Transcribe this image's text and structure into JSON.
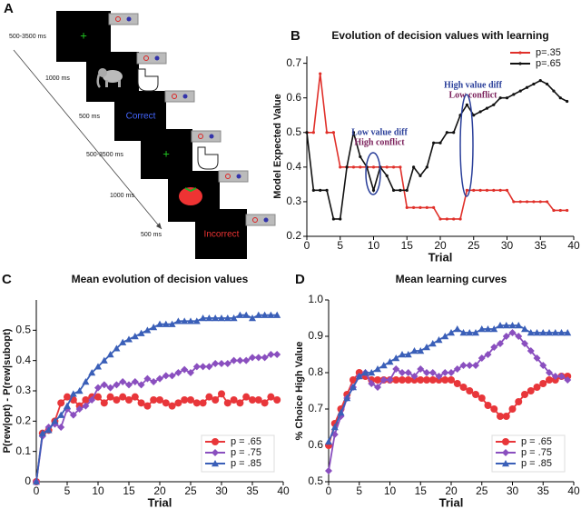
{
  "diagram": {
    "label": "A",
    "steps": [
      {
        "time": "500-3500 ms"
      },
      {
        "time": "1000 ms"
      },
      {
        "time": "500 ms",
        "feedback": "Correct"
      },
      {
        "time": "500-3500 ms"
      },
      {
        "time": "1000 ms"
      },
      {
        "time": "500 ms",
        "feedback": "Incorrect"
      }
    ]
  },
  "chart_data": [
    {
      "type": "line",
      "label": "B",
      "title": "Evolution of decision values with learning",
      "xlabel": "Trial",
      "ylabel": "Model Expected Value",
      "legend": "upper right",
      "x": [
        0,
        1,
        2,
        3,
        4,
        5,
        6,
        7,
        8,
        9,
        10,
        11,
        12,
        13,
        14,
        15,
        16,
        17,
        18,
        19,
        20,
        21,
        22,
        23,
        24,
        25,
        26,
        27,
        28,
        29,
        30,
        31,
        32,
        33,
        34,
        35,
        36,
        37,
        38,
        39
      ],
      "series": [
        {
          "name": "p=.35",
          "color": "#e0302a",
          "marker": "dot",
          "values": [
            0.5,
            0.5,
            0.67,
            0.5,
            0.5,
            0.4,
            0.4,
            0.4,
            0.4,
            0.4,
            0.4,
            0.4,
            0.4,
            0.4,
            0.4,
            0.283,
            0.283,
            0.283,
            0.283,
            0.283,
            0.25,
            0.25,
            0.25,
            0.25,
            0.333,
            0.333,
            0.333,
            0.333,
            0.333,
            0.333,
            0.333,
            0.3,
            0.3,
            0.3,
            0.3,
            0.3,
            0.3,
            0.275,
            0.275,
            0.275
          ]
        },
        {
          "name": "p=.65",
          "color": "#111111",
          "marker": "dot",
          "values": [
            0.5,
            0.333,
            0.333,
            0.333,
            0.25,
            0.25,
            0.4,
            0.5,
            0.43,
            0.4,
            0.333,
            0.4,
            0.375,
            0.333,
            0.333,
            0.333,
            0.4,
            0.375,
            0.4,
            0.47,
            0.47,
            0.5,
            0.5,
            0.55,
            0.58,
            0.55,
            0.56,
            0.57,
            0.58,
            0.6,
            0.6,
            0.61,
            0.62,
            0.63,
            0.64,
            0.65,
            0.64,
            0.62,
            0.6,
            0.59
          ]
        }
      ],
      "annotations": [
        {
          "text": "Low value diff",
          "color": "#2a3f9a"
        },
        {
          "text": "High conflict",
          "color": "#7a1f5a"
        },
        {
          "text": "High value diff",
          "color": "#2a3f9a"
        },
        {
          "text": "Low conflict",
          "color": "#7a1f5a"
        }
      ],
      "xlim": [
        0,
        40
      ],
      "xticks": [
        0,
        5,
        10,
        15,
        20,
        25,
        30,
        35,
        40
      ],
      "ylim": [
        0.2,
        0.72
      ],
      "yticks": [
        0.2,
        0.3,
        0.4,
        0.5,
        0.6,
        0.7
      ]
    },
    {
      "type": "line",
      "label": "C",
      "title": "Mean evolution of decision values",
      "xlabel": "Trial",
      "ylabel": "P(rew|opt) - P(rew|subopt)",
      "legend": "lower right",
      "x": [
        0,
        1,
        2,
        3,
        4,
        5,
        6,
        7,
        8,
        9,
        10,
        11,
        12,
        13,
        14,
        15,
        16,
        17,
        18,
        19,
        20,
        21,
        22,
        23,
        24,
        25,
        26,
        27,
        28,
        29,
        30,
        31,
        32,
        33,
        34,
        35,
        36,
        37,
        38,
        39
      ],
      "series": [
        {
          "name": "p = .65",
          "color": "#e8363a",
          "marker": "circle",
          "values": [
            0,
            0.16,
            0.17,
            0.2,
            0.26,
            0.28,
            0.27,
            0.25,
            0.27,
            0.28,
            0.28,
            0.26,
            0.28,
            0.27,
            0.28,
            0.27,
            0.28,
            0.26,
            0.25,
            0.27,
            0.27,
            0.26,
            0.25,
            0.26,
            0.27,
            0.27,
            0.26,
            0.26,
            0.28,
            0.27,
            0.29,
            0.26,
            0.27,
            0.26,
            0.28,
            0.27,
            0.27,
            0.26,
            0.28,
            0.27
          ]
        },
        {
          "name": "p = .75",
          "color": "#8a4fbf",
          "marker": "diamond",
          "values": [
            0,
            0.15,
            0.18,
            0.19,
            0.18,
            0.24,
            0.22,
            0.24,
            0.25,
            0.27,
            0.31,
            0.32,
            0.31,
            0.32,
            0.33,
            0.32,
            0.33,
            0.32,
            0.34,
            0.33,
            0.34,
            0.35,
            0.35,
            0.36,
            0.37,
            0.36,
            0.38,
            0.38,
            0.38,
            0.39,
            0.39,
            0.39,
            0.4,
            0.4,
            0.4,
            0.41,
            0.41,
            0.41,
            0.42,
            0.42
          ]
        },
        {
          "name": "p = .85",
          "color": "#3a5fb8",
          "marker": "triangle",
          "values": [
            0,
            0.16,
            0.17,
            0.2,
            0.22,
            0.25,
            0.29,
            0.3,
            0.33,
            0.36,
            0.38,
            0.4,
            0.42,
            0.44,
            0.46,
            0.47,
            0.48,
            0.49,
            0.5,
            0.51,
            0.52,
            0.52,
            0.52,
            0.53,
            0.53,
            0.53,
            0.53,
            0.54,
            0.54,
            0.54,
            0.54,
            0.54,
            0.54,
            0.55,
            0.55,
            0.54,
            0.55,
            0.55,
            0.55,
            0.55
          ]
        }
      ],
      "xlim": [
        0,
        40
      ],
      "xticks": [
        0,
        5,
        10,
        15,
        20,
        25,
        30,
        35,
        40
      ],
      "ylim": [
        0,
        0.6
      ],
      "yticks": [
        0,
        0.1,
        0.2,
        0.3,
        0.4,
        0.5
      ]
    },
    {
      "type": "line",
      "label": "D",
      "title": "Mean learning curves",
      "xlabel": "Trial",
      "ylabel": "% Choice High Value",
      "legend": "lower right",
      "x": [
        0,
        1,
        2,
        3,
        4,
        5,
        6,
        7,
        8,
        9,
        10,
        11,
        12,
        13,
        14,
        15,
        16,
        17,
        18,
        19,
        20,
        21,
        22,
        23,
        24,
        25,
        26,
        27,
        28,
        29,
        30,
        31,
        32,
        33,
        34,
        35,
        36,
        37,
        38,
        39
      ],
      "series": [
        {
          "name": "p = .65",
          "color": "#e8363a",
          "marker": "circle",
          "values": [
            0.6,
            0.66,
            0.7,
            0.74,
            0.78,
            0.8,
            0.79,
            0.78,
            0.78,
            0.78,
            0.78,
            0.78,
            0.78,
            0.78,
            0.78,
            0.78,
            0.78,
            0.78,
            0.78,
            0.78,
            0.78,
            0.77,
            0.76,
            0.75,
            0.74,
            0.73,
            0.71,
            0.7,
            0.68,
            0.68,
            0.7,
            0.72,
            0.74,
            0.75,
            0.76,
            0.77,
            0.78,
            0.78,
            0.79,
            0.79
          ]
        },
        {
          "name": "p = .75",
          "color": "#8a4fbf",
          "marker": "diamond",
          "values": [
            0.53,
            0.63,
            0.68,
            0.73,
            0.76,
            0.79,
            0.8,
            0.77,
            0.76,
            0.78,
            0.78,
            0.81,
            0.8,
            0.8,
            0.79,
            0.81,
            0.8,
            0.8,
            0.79,
            0.8,
            0.8,
            0.81,
            0.82,
            0.82,
            0.82,
            0.84,
            0.85,
            0.87,
            0.88,
            0.9,
            0.91,
            0.9,
            0.88,
            0.86,
            0.84,
            0.82,
            0.8,
            0.79,
            0.79,
            0.78
          ]
        },
        {
          "name": "p = .85",
          "color": "#3a5fb8",
          "marker": "triangle",
          "values": [
            0.61,
            0.65,
            0.69,
            0.73,
            0.76,
            0.79,
            0.8,
            0.8,
            0.81,
            0.82,
            0.83,
            0.84,
            0.85,
            0.85,
            0.86,
            0.86,
            0.87,
            0.88,
            0.89,
            0.9,
            0.91,
            0.92,
            0.91,
            0.91,
            0.91,
            0.92,
            0.92,
            0.92,
            0.93,
            0.93,
            0.93,
            0.93,
            0.92,
            0.91,
            0.91,
            0.91,
            0.91,
            0.91,
            0.91,
            0.91
          ]
        }
      ],
      "xlim": [
        0,
        40
      ],
      "xticks": [
        0,
        5,
        10,
        15,
        20,
        25,
        30,
        35,
        40
      ],
      "ylim": [
        0.5,
        1.0
      ],
      "yticks": [
        0.5,
        0.6,
        0.7,
        0.8,
        0.9,
        {
          "value": 1,
          "label": "1.0"
        }
      ]
    }
  ]
}
